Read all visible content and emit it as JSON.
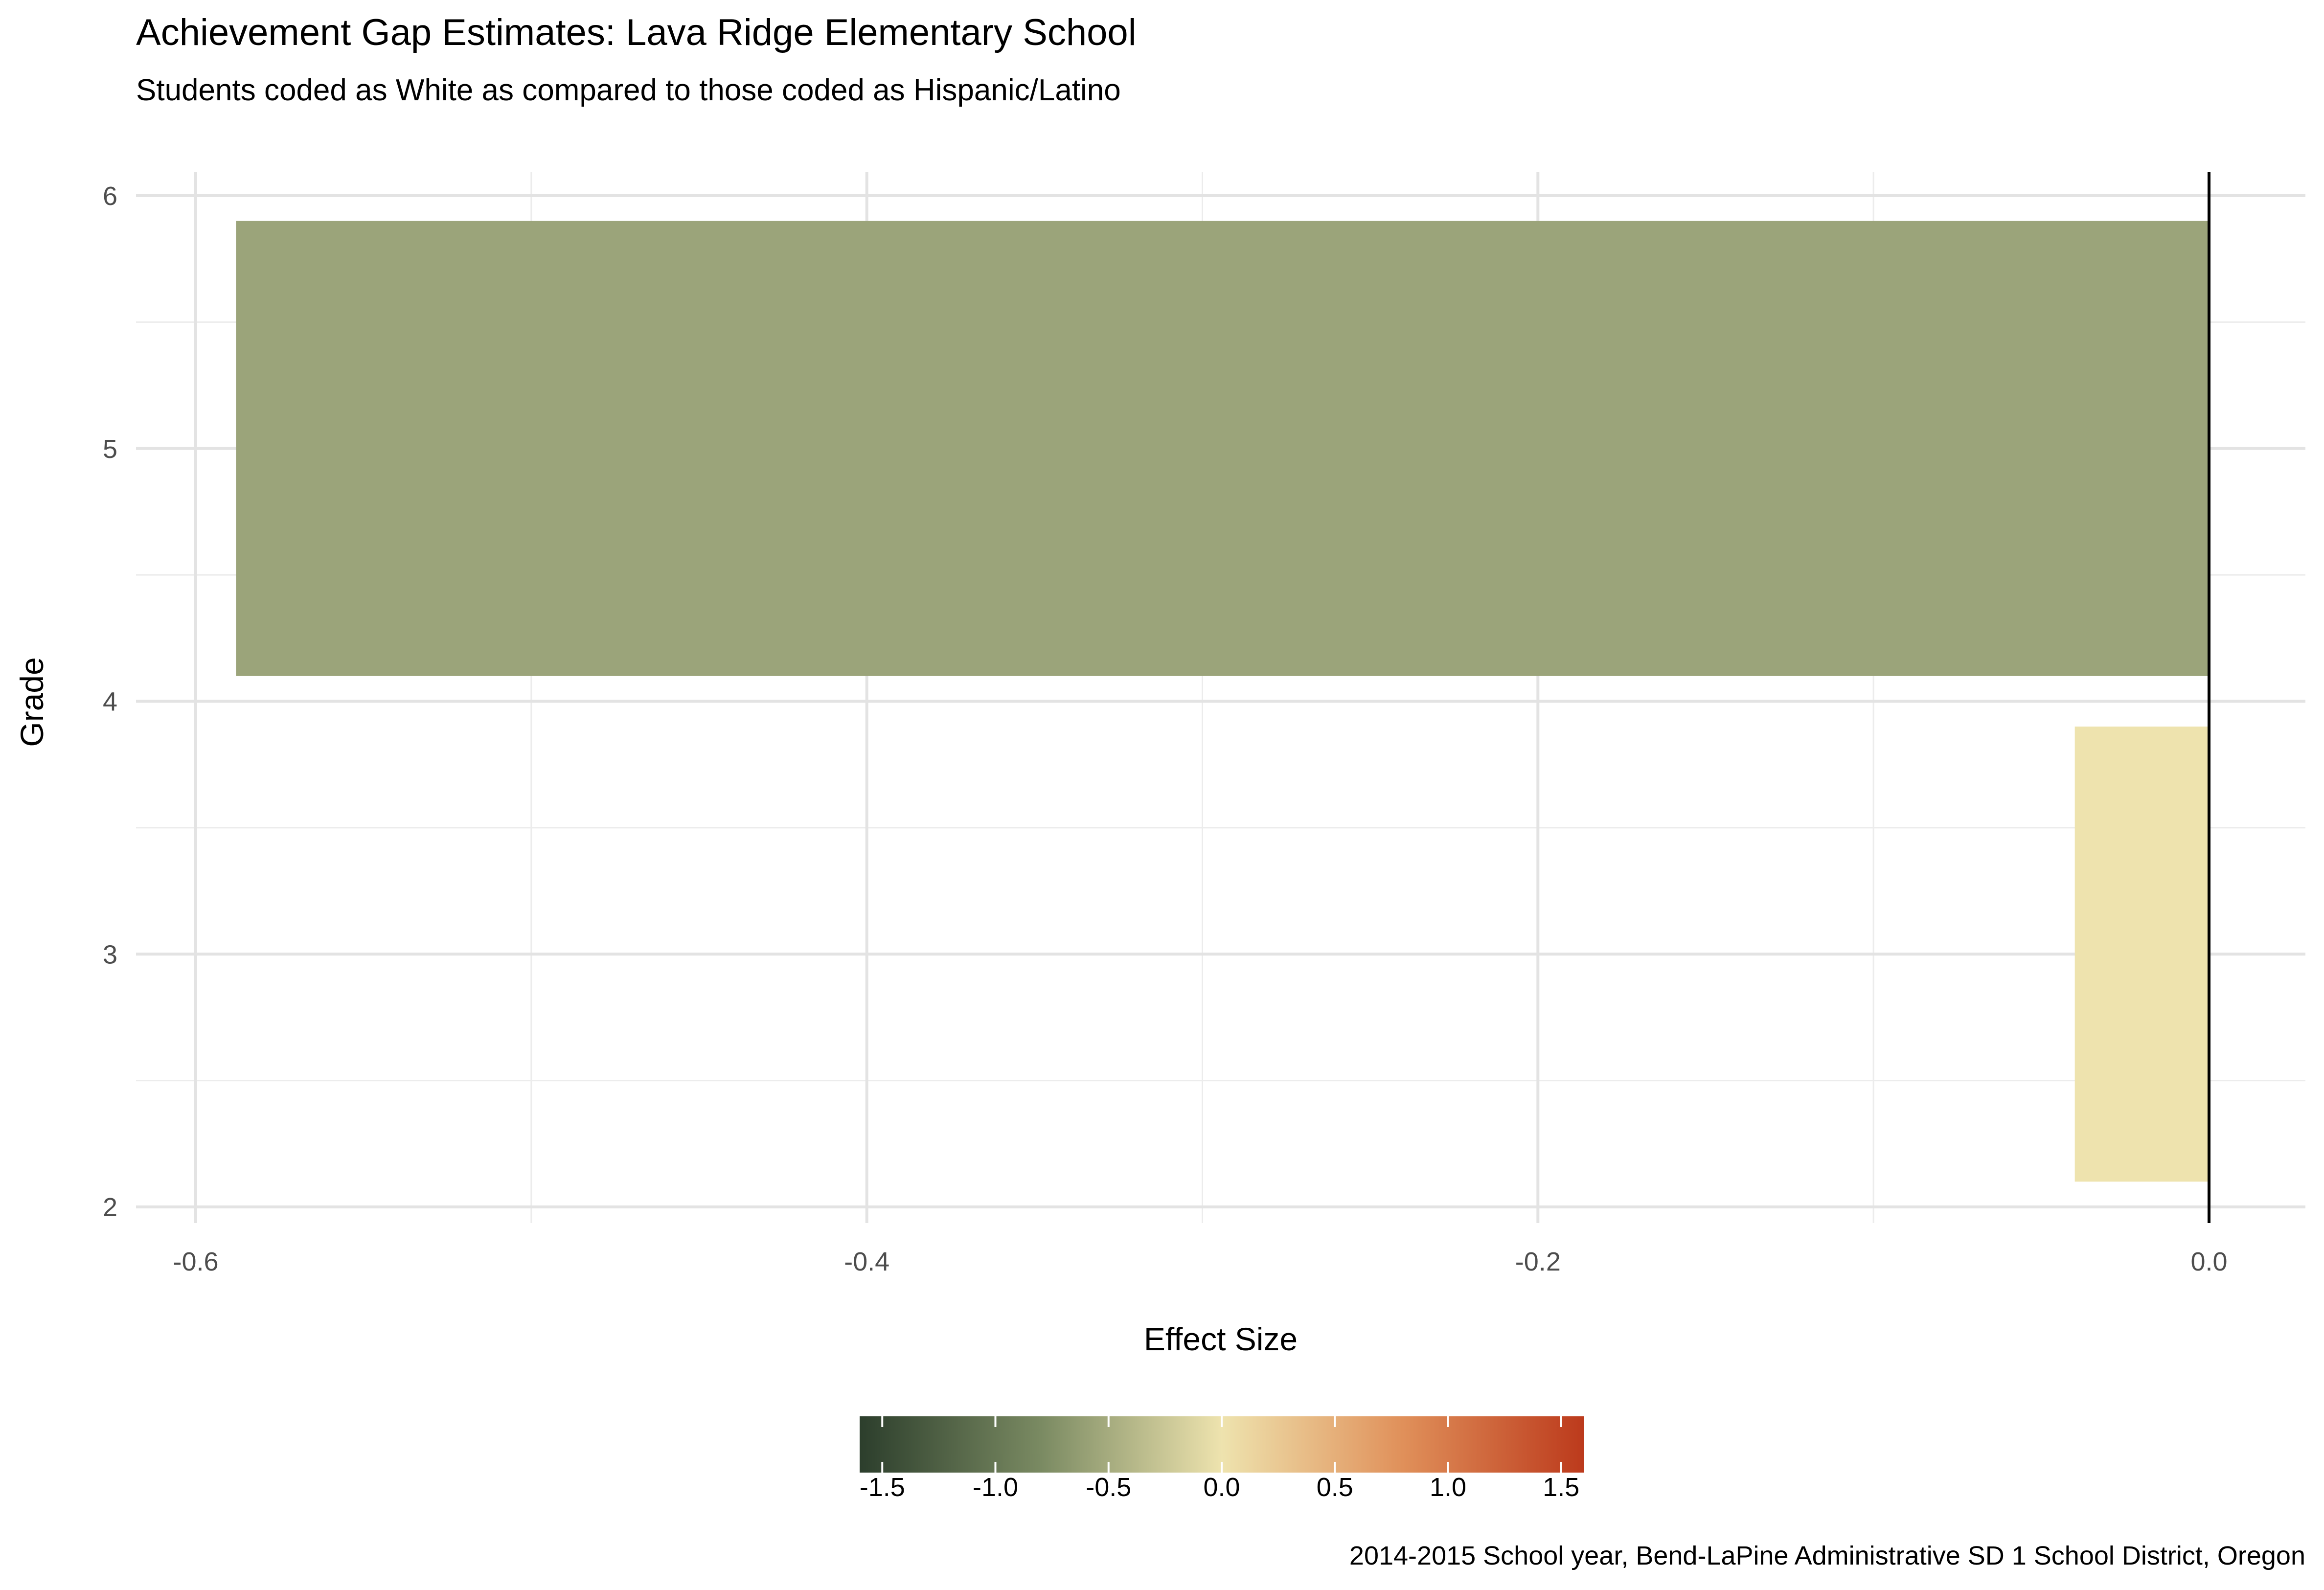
{
  "chart_data": {
    "type": "bar",
    "orientation": "horizontal",
    "title": "Achievement Gap Estimates: Lava Ridge Elementary School",
    "subtitle": "Students coded as White as compared to those coded as Hispanic/Latino",
    "xlabel": "Effect Size",
    "ylabel": "Grade",
    "caption": "2014-2015 School year, Bend-LaPine Administrative SD 1 School District, Oregon",
    "xlim": [
      -0.6,
      0.0
    ],
    "ylim": [
      2,
      6
    ],
    "x_ticks": [
      -0.6,
      -0.4,
      -0.2,
      0.0
    ],
    "x_tick_labels": [
      "-0.6",
      "-0.4",
      "-0.2",
      "0.0"
    ],
    "y_ticks": [
      2,
      3,
      4,
      5,
      6
    ],
    "y_tick_labels": [
      "2",
      "3",
      "4",
      "5",
      "6"
    ],
    "bars": [
      {
        "y_from": 2.1,
        "y_to": 3.9,
        "value": -0.04,
        "color": "#EEE3AE"
      },
      {
        "y_from": 4.1,
        "y_to": 5.9,
        "value": -0.588,
        "color": "#9BA47A"
      }
    ],
    "reference_line": {
      "x": 0.0,
      "color": "#000000"
    },
    "grid": true,
    "legend": {
      "type": "colorbar",
      "placement": "bottom",
      "range": [
        -1.6,
        1.6
      ],
      "ticks": [
        -1.5,
        -1.0,
        -0.5,
        0.0,
        0.5,
        1.0,
        1.5
      ],
      "tick_labels": [
        "-1.5",
        "-1.0",
        "-0.5",
        "0.0",
        "0.5",
        "1.0",
        "1.5"
      ],
      "colors": [
        "#2C3E2C",
        "#7A8A62",
        "#EEE3AE",
        "#E0905A",
        "#BC3A1C"
      ]
    }
  }
}
